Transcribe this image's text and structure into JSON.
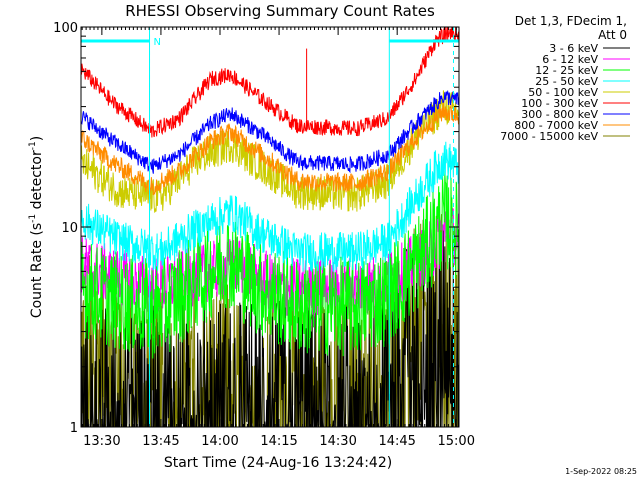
{
  "chart_data": {
    "type": "line",
    "title": "RHESSI Observing Summary Count Rates",
    "xlabel": "Start Time (24-Aug-16 13:24:42)",
    "ylabel_main": "Count Rate (s",
    "ylabel_sup1": "-1",
    "ylabel_mid": " detector",
    "ylabel_sup2": "-1",
    "ylabel_end": ")",
    "yscale": "log",
    "ylim": [
      1,
      100
    ],
    "xlim_minutes": [
      0,
      96
    ],
    "x_ticks": [
      {
        "label": "13:30",
        "minute": 5.3
      },
      {
        "label": "13:45",
        "minute": 20.3
      },
      {
        "label": "14:00",
        "minute": 35.3
      },
      {
        "label": "14:15",
        "minute": 50.3
      },
      {
        "label": "14:30",
        "minute": 65.3
      },
      {
        "label": "14:45",
        "minute": 80.3
      },
      {
        "label": "15:00",
        "minute": 95.3
      }
    ],
    "y_ticks": [
      {
        "label": "1",
        "value": 1
      },
      {
        "label": "10",
        "value": 10
      },
      {
        "label": "100",
        "value": 100
      }
    ],
    "legend_header": [
      "Det 1,3, FDecim 1,",
      "Att 0"
    ],
    "legend_placement": "right",
    "series": [
      {
        "name": "3 - 6 keV",
        "color": "#000000",
        "noise": 0.5,
        "points": [
          [
            0,
            1.2
          ],
          [
            10,
            1.4
          ],
          [
            20,
            1.3
          ],
          [
            30,
            1.5
          ],
          [
            45,
            1.4
          ],
          [
            60,
            1.3
          ],
          [
            75,
            1.5
          ],
          [
            82,
            2.5
          ],
          [
            90,
            3.5
          ],
          [
            95,
            3.0
          ]
        ]
      },
      {
        "name": "6 - 12 keV",
        "color": "#ff00ff",
        "noise": 0.15,
        "points": [
          [
            0,
            6.5
          ],
          [
            10,
            5.5
          ],
          [
            20,
            5.0
          ],
          [
            30,
            5.8
          ],
          [
            40,
            6.5
          ],
          [
            50,
            5.0
          ],
          [
            60,
            5.0
          ],
          [
            75,
            5.2
          ],
          [
            82,
            6.0
          ],
          [
            90,
            8.0
          ],
          [
            93,
            10
          ],
          [
            96,
            8.5
          ]
        ]
      },
      {
        "name": "12 - 25 keV",
        "color": "#00ff00",
        "noise": 0.25,
        "points": [
          [
            0,
            5.0
          ],
          [
            10,
            4.2
          ],
          [
            20,
            3.8
          ],
          [
            30,
            5.5
          ],
          [
            37,
            7.0
          ],
          [
            45,
            5.0
          ],
          [
            55,
            4.0
          ],
          [
            70,
            4.0
          ],
          [
            78,
            4.5
          ],
          [
            85,
            6.5
          ],
          [
            92,
            11
          ],
          [
            96,
            9.5
          ]
        ]
      },
      {
        "name": "25 - 50 keV",
        "color": "#00ffff",
        "noise": 0.1,
        "points": [
          [
            0,
            11
          ],
          [
            10,
            8.5
          ],
          [
            20,
            7.5
          ],
          [
            30,
            10
          ],
          [
            38,
            12
          ],
          [
            45,
            9.5
          ],
          [
            55,
            7.5
          ],
          [
            70,
            7.5
          ],
          [
            78,
            8.5
          ],
          [
            85,
            14
          ],
          [
            92,
            22
          ],
          [
            96,
            20
          ]
        ]
      },
      {
        "name": "50 - 100 keV",
        "color": "#cccc00",
        "noise": 0.09,
        "points": [
          [
            0,
            21
          ],
          [
            10,
            15
          ],
          [
            20,
            14
          ],
          [
            30,
            22
          ],
          [
            38,
            26
          ],
          [
            46,
            20
          ],
          [
            55,
            15
          ],
          [
            70,
            14.5
          ],
          [
            78,
            17
          ],
          [
            85,
            28
          ],
          [
            92,
            40
          ],
          [
            96,
            38
          ]
        ]
      },
      {
        "name": "100 - 300 keV",
        "color": "#ff0000",
        "noise": 0.04,
        "points": [
          [
            0,
            62
          ],
          [
            8,
            42
          ],
          [
            18,
            30
          ],
          [
            25,
            35
          ],
          [
            33,
            55
          ],
          [
            38,
            58
          ],
          [
            45,
            45
          ],
          [
            55,
            32
          ],
          [
            70,
            31
          ],
          [
            78,
            35
          ],
          [
            85,
            55
          ],
          [
            90,
            85
          ],
          [
            94,
            95
          ],
          [
            96,
            90
          ]
        ]
      },
      {
        "name": "300 - 800 keV",
        "color": "#0000ff",
        "noise": 0.04,
        "points": [
          [
            0,
            36
          ],
          [
            8,
            27
          ],
          [
            18,
            20
          ],
          [
            25,
            23
          ],
          [
            33,
            33
          ],
          [
            38,
            37
          ],
          [
            46,
            29
          ],
          [
            55,
            21
          ],
          [
            70,
            20.5
          ],
          [
            78,
            23
          ],
          [
            85,
            33
          ],
          [
            92,
            45
          ],
          [
            96,
            43
          ]
        ]
      },
      {
        "name": "800 - 7000 keV",
        "color": "#ff8c00",
        "noise": 0.05,
        "points": [
          [
            0,
            28
          ],
          [
            8,
            21
          ],
          [
            18,
            16
          ],
          [
            25,
            19
          ],
          [
            33,
            27
          ],
          [
            38,
            30
          ],
          [
            46,
            23
          ],
          [
            55,
            17
          ],
          [
            70,
            16.5
          ],
          [
            78,
            19
          ],
          [
            85,
            28
          ],
          [
            92,
            38
          ],
          [
            96,
            36
          ]
        ]
      },
      {
        "name": "7000 - 15000 keV",
        "color": "#808000",
        "noise": 0.5,
        "points": [
          [
            0,
            2.5
          ],
          [
            10,
            2.2
          ],
          [
            20,
            1.5
          ],
          [
            30,
            1.8
          ],
          [
            45,
            1.6
          ],
          [
            60,
            1.5
          ],
          [
            75,
            1.8
          ],
          [
            82,
            2.8
          ],
          [
            90,
            4.0
          ],
          [
            95,
            3.5
          ]
        ]
      }
    ],
    "attenuator_bar_color": "#00ffff",
    "attenuator_bars": [
      {
        "x_start": 0,
        "x_end": 17.4,
        "label": "N"
      },
      {
        "x_start": 78.3,
        "x_end": 96
      }
    ],
    "vertical_markers": [
      17.4,
      94.6
    ]
  },
  "footer_date": "1-Sep-2022 08:25"
}
